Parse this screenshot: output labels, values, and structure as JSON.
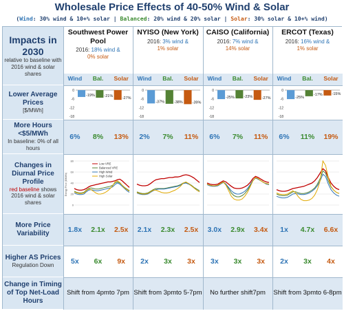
{
  "title": "Wholesale Price Effects of 40-50% Wind & Solar",
  "subtitle": {
    "open": "(",
    "wind_key": "Wind",
    "wind_text": ": 30% wind & 10+% solar  |  ",
    "bal_key": "Balanced",
    "bal_text": ": 20% wind & 20% solar  |  ",
    "sol_key": "Solar",
    "sol_text": ": 30% solar & 10+% wind)"
  },
  "colors": {
    "wind": "#5b9bd5",
    "balanced": "#548235",
    "solar": "#c55a11",
    "header_bg": "#d9e6f2",
    "title": "#1f3f6e"
  },
  "header": {
    "impacts": "Impacts in 2030",
    "impacts_sub": "relative to baseline with 2016 wind & solar shares"
  },
  "scenario_labels": [
    "Wind",
    "Bal.",
    "Solar"
  ],
  "regions": [
    {
      "name": "Southwest Power Pool",
      "share_prefix": "2016: ",
      "share_a": "18% wind &",
      "share_b": "0% solar"
    },
    {
      "name": "NYISO (New York)",
      "share_prefix": "2016: ",
      "share_a": "3% wind &",
      "share_b": "1% solar"
    },
    {
      "name": "CAISO (California)",
      "share_prefix": "2016: ",
      "share_a": "7% wind &",
      "share_b": "14% solar"
    },
    {
      "name": "ERCOT (Texas)",
      "share_prefix": "2016: ",
      "share_a": "16% wind &",
      "share_b": "1% solar"
    }
  ],
  "rows": {
    "lower_prices": {
      "main": "Lower Average Prices",
      "sub": "[$/MWh]"
    },
    "more_hours": {
      "main": "More Hours <$5/MWh",
      "sub": "In baseline: 0% of all hours"
    },
    "diurnal": {
      "main": "Changes in Diurnal Price Profile",
      "sub_red": "red baseline",
      "sub": "shows 2016 wind & solar shares"
    },
    "variability": {
      "main": "More Price Variability"
    },
    "as_prices": {
      "main": "Higher AS Prices",
      "sub": "Regulation Down"
    },
    "timing": {
      "main": "Change in Timing of Top Net-Load Hours"
    }
  },
  "bar_axis_ticks": [
    "0",
    "-6",
    "-12",
    "-18"
  ],
  "price_bars": [
    {
      "region": "SPP",
      "values": [
        -19,
        -21,
        -27
      ],
      "labels": [
        "-19%",
        "-21%",
        "-27%"
      ]
    },
    {
      "region": "NYISO",
      "values": [
        -37,
        -38,
        -39
      ],
      "labels": [
        "-37%",
        "-38%",
        "-39%"
      ]
    },
    {
      "region": "CAISO",
      "values": [
        -25,
        -23,
        -27
      ],
      "labels": [
        "-25%",
        "-23%",
        "-27%"
      ]
    },
    {
      "region": "ERCOT",
      "values": [
        -25,
        -17,
        -15
      ],
      "labels": [
        "-25%",
        "-17%",
        "-15%"
      ]
    }
  ],
  "more_hours": [
    [
      "6%",
      "8%",
      "13%"
    ],
    [
      "2%",
      "7%",
      "11%"
    ],
    [
      "6%",
      "7%",
      "11%"
    ],
    [
      "6%",
      "11%",
      "19%"
    ]
  ],
  "variability": [
    [
      "1.8x",
      "2.1x",
      "2.5x"
    ],
    [
      "2.1x",
      "2.3x",
      "2.5x"
    ],
    [
      "3.0x",
      "2.9x",
      "3.4x"
    ],
    [
      "1x",
      "4.7x",
      "6.6x"
    ]
  ],
  "as_prices": [
    [
      "5x",
      "6x",
      "9x"
    ],
    [
      "2x",
      "3x",
      "3x"
    ],
    [
      "3x",
      "3x",
      "3x"
    ],
    [
      "2x",
      "3x",
      "4x"
    ]
  ],
  "timing": [
    {
      "a": "Shift from 4pm",
      "b": "to 7pm"
    },
    {
      "a": "Shift from 3pm",
      "b": "to 5-7pm"
    },
    {
      "a": "No further shift",
      "b": "7pm"
    },
    {
      "a": "Shift from 3pm",
      "b": "to 6-8pm"
    }
  ],
  "diurnal_chart": {
    "ylabel": "Energy Price ($/MWh)",
    "ticks": [
      "80",
      "60",
      "40",
      "20",
      "0"
    ],
    "legend": [
      "Low VRE",
      "Balanced VRE",
      "High Wind",
      "High Solar"
    ],
    "legend_colors": [
      "#c00000",
      "#548235",
      "#2e74b5",
      "#e0a800"
    ]
  }
}
